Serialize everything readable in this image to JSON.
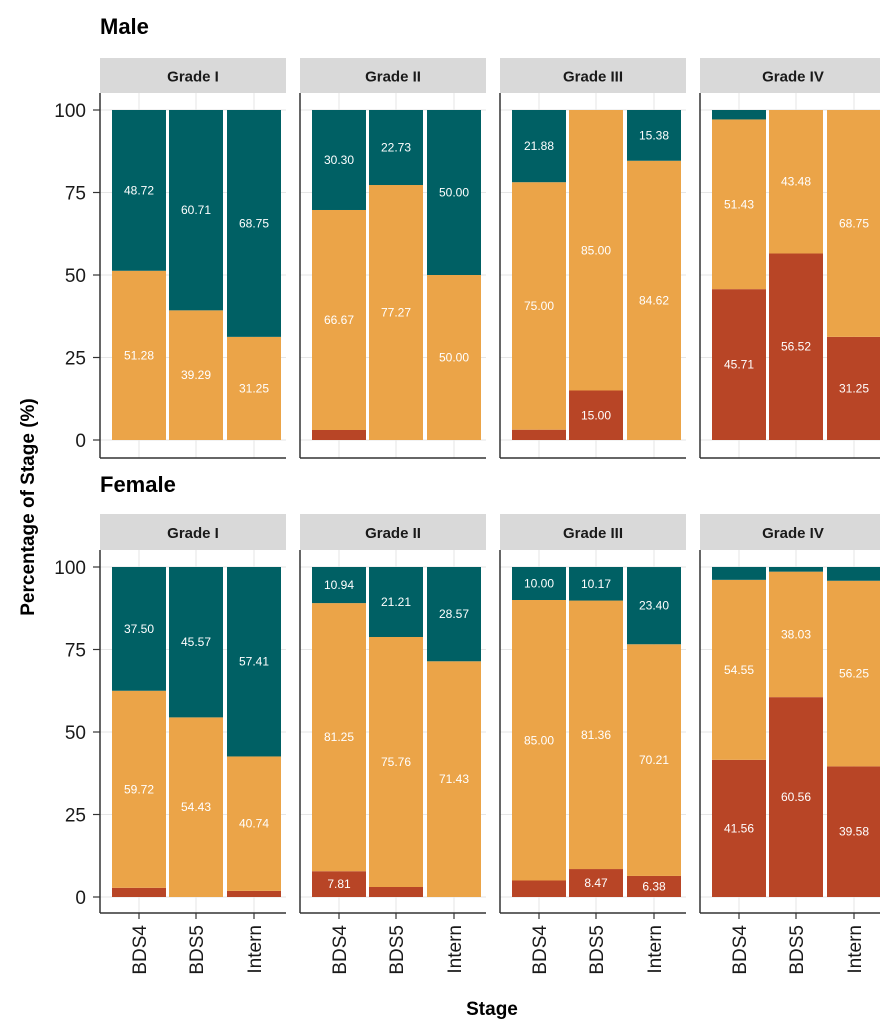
{
  "chart_data": {
    "type": "bar",
    "stacked": true,
    "xlabel": "Stage",
    "ylabel": "Percentage of Stage (%)",
    "ylim": [
      0,
      100
    ],
    "y_ticks": [
      "0",
      "25",
      "50",
      "75",
      "100"
    ],
    "categories": [
      "BDS4",
      "BDS5",
      "Intern"
    ],
    "facet_columns": [
      "Grade I",
      "Grade II",
      "Grade III",
      "Grade IV"
    ],
    "colors": {
      "bottom": "#b84526",
      "middle": "#eba448",
      "top": "#006064"
    },
    "grid": true,
    "groups": [
      {
        "title": "Male",
        "panels": [
          {
            "strip": "Grade I",
            "bars": [
              {
                "category": "BDS4",
                "segments": [
                  0,
                  51.28,
                  48.72
                ],
                "labels": [
                  "",
                  "51.28",
                  "48.72"
                ]
              },
              {
                "category": "BDS5",
                "segments": [
                  0,
                  39.29,
                  60.71
                ],
                "labels": [
                  "",
                  "39.29",
                  "60.71"
                ]
              },
              {
                "category": "Intern",
                "segments": [
                  0,
                  31.25,
                  68.75
                ],
                "labels": [
                  "",
                  "31.25",
                  "68.75"
                ]
              }
            ]
          },
          {
            "strip": "Grade II",
            "bars": [
              {
                "category": "BDS4",
                "segments": [
                  3.03,
                  66.67,
                  30.3
                ],
                "labels": [
                  "",
                  "66.67",
                  "30.30"
                ]
              },
              {
                "category": "BDS5",
                "segments": [
                  0,
                  77.27,
                  22.73
                ],
                "labels": [
                  "",
                  "77.27",
                  "22.73"
                ]
              },
              {
                "category": "Intern",
                "segments": [
                  0,
                  50.0,
                  50.0
                ],
                "labels": [
                  "",
                  "50.00",
                  "50.00"
                ]
              }
            ]
          },
          {
            "strip": "Grade III",
            "bars": [
              {
                "category": "BDS4",
                "segments": [
                  3.12,
                  75.0,
                  21.88
                ],
                "labels": [
                  "",
                  "75.00",
                  "21.88"
                ]
              },
              {
                "category": "BDS5",
                "segments": [
                  15.0,
                  85.0,
                  0
                ],
                "labels": [
                  "15.00",
                  "85.00",
                  ""
                ]
              },
              {
                "category": "Intern",
                "segments": [
                  0,
                  84.62,
                  15.38
                ],
                "labels": [
                  "",
                  "84.62",
                  "15.38"
                ]
              }
            ]
          },
          {
            "strip": "Grade IV",
            "bars": [
              {
                "category": "BDS4",
                "segments": [
                  45.71,
                  51.43,
                  2.86
                ],
                "labels": [
                  "45.71",
                  "51.43",
                  ""
                ]
              },
              {
                "category": "BDS5",
                "segments": [
                  56.52,
                  43.48,
                  0
                ],
                "labels": [
                  "56.52",
                  "43.48",
                  ""
                ]
              },
              {
                "category": "Intern",
                "segments": [
                  31.25,
                  68.75,
                  0
                ],
                "labels": [
                  "31.25",
                  "68.75",
                  ""
                ]
              }
            ]
          }
        ]
      },
      {
        "title": "Female",
        "panels": [
          {
            "strip": "Grade I",
            "bars": [
              {
                "category": "BDS4",
                "segments": [
                  2.78,
                  59.72,
                  37.5
                ],
                "labels": [
                  "",
                  "59.72",
                  "37.50"
                ]
              },
              {
                "category": "BDS5",
                "segments": [
                  0,
                  54.43,
                  45.57
                ],
                "labels": [
                  "",
                  "54.43",
                  "45.57"
                ]
              },
              {
                "category": "Intern",
                "segments": [
                  1.85,
                  40.74,
                  57.41
                ],
                "labels": [
                  "",
                  "40.74",
                  "57.41"
                ]
              }
            ]
          },
          {
            "strip": "Grade II",
            "bars": [
              {
                "category": "BDS4",
                "segments": [
                  7.81,
                  81.25,
                  10.94
                ],
                "labels": [
                  "7.81",
                  "81.25",
                  "10.94"
                ]
              },
              {
                "category": "BDS5",
                "segments": [
                  3.03,
                  75.76,
                  21.21
                ],
                "labels": [
                  "",
                  "75.76",
                  "21.21"
                ]
              },
              {
                "category": "Intern",
                "segments": [
                  0,
                  71.43,
                  28.57
                ],
                "labels": [
                  "",
                  "71.43",
                  "28.57"
                ]
              }
            ]
          },
          {
            "strip": "Grade III",
            "bars": [
              {
                "category": "BDS4",
                "segments": [
                  5.0,
                  85.0,
                  10.0
                ],
                "labels": [
                  "",
                  "85.00",
                  "10.00"
                ]
              },
              {
                "category": "BDS5",
                "segments": [
                  8.47,
                  81.36,
                  10.17
                ],
                "labels": [
                  "8.47",
                  "81.36",
                  "10.17"
                ]
              },
              {
                "category": "Intern",
                "segments": [
                  6.38,
                  70.21,
                  23.4
                ],
                "labels": [
                  "6.38",
                  "70.21",
                  "23.40"
                ]
              }
            ]
          },
          {
            "strip": "Grade IV",
            "bars": [
              {
                "category": "BDS4",
                "segments": [
                  41.56,
                  54.55,
                  3.9
                ],
                "labels": [
                  "41.56",
                  "54.55",
                  ""
                ]
              },
              {
                "category": "BDS5",
                "segments": [
                  60.56,
                  38.03,
                  1.41
                ],
                "labels": [
                  "60.56",
                  "38.03",
                  ""
                ]
              },
              {
                "category": "Intern",
                "segments": [
                  39.58,
                  56.25,
                  4.17
                ],
                "labels": [
                  "39.58",
                  "56.25",
                  ""
                ]
              }
            ]
          }
        ]
      }
    ]
  }
}
